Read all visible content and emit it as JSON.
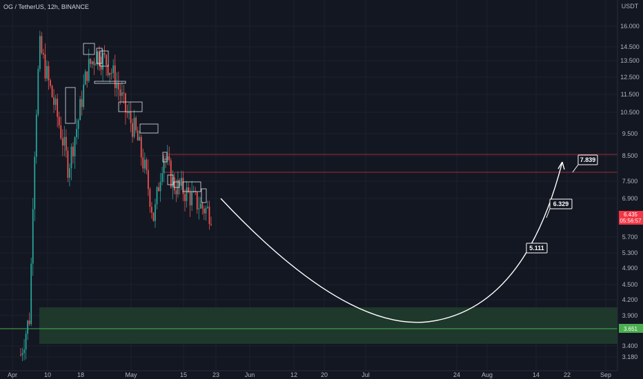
{
  "header": {
    "title": "OG / TetherUS, 12h, BINANCE",
    "currency": "USDT"
  },
  "price_badges": {
    "last_price": "6.435",
    "countdown": "05:56:57",
    "last_color": "#f23645",
    "support_price": "3.651",
    "support_color": "#4caf50"
  },
  "chart_data": {
    "type": "candlestick",
    "title": "OG / TetherUS, 12h, BINANCE",
    "yscale": "log",
    "ylim": [
      3.0,
      17.5
    ],
    "y_ticks": [
      "16.000",
      "14.500",
      "13.500",
      "12.500",
      "11.500",
      "10.500",
      "9.500",
      "8.500",
      "7.500",
      "6.900",
      "5.700",
      "5.300",
      "4.900",
      "4.500",
      "4.200",
      "3.900",
      "3.400",
      "3.180"
    ],
    "x_ticks": [
      "Apr",
      "10",
      "18",
      "May",
      "15",
      "23",
      "Jun",
      "12",
      "20",
      "Jul",
      "24",
      "Aug",
      "14",
      "22",
      "Sep"
    ],
    "price_series": {
      "description_points": [
        [
          "Apr 3",
          3.2
        ],
        [
          "Apr 6",
          3.9
        ],
        [
          "Apr 7",
          14.5
        ],
        [
          "Apr 8",
          12.0
        ],
        [
          "Apr 10",
          10.0
        ],
        [
          "Apr 12",
          8.0
        ],
        [
          "Apr 14",
          10.0
        ],
        [
          "Apr 16",
          13.0
        ],
        [
          "Apr 18",
          14.0
        ],
        [
          "Apr 20",
          13.5
        ],
        [
          "Apr 23",
          12.3
        ],
        [
          "Apr 26",
          10.6
        ],
        [
          "Apr 29",
          9.6
        ],
        [
          "May 2",
          8.0
        ],
        [
          "May 4",
          6.2
        ],
        [
          "May 5",
          8.6
        ],
        [
          "May 7",
          7.4
        ],
        [
          "May 9",
          7.2
        ],
        [
          "May 12",
          6.9
        ],
        [
          "May 15",
          6.6
        ],
        [
          "May 17",
          6.435
        ]
      ]
    },
    "resistance_zone": {
      "low": 7.84,
      "high": 8.55,
      "color": "#f23645"
    },
    "support_zone": {
      "low": 3.36,
      "high": 3.98,
      "color": "#4caf50"
    },
    "support_line": 3.651,
    "projection_labels": [
      "5.111",
      "6.329",
      "7.839"
    ],
    "projection_colors": {
      "curve": "#ffffff"
    }
  }
}
